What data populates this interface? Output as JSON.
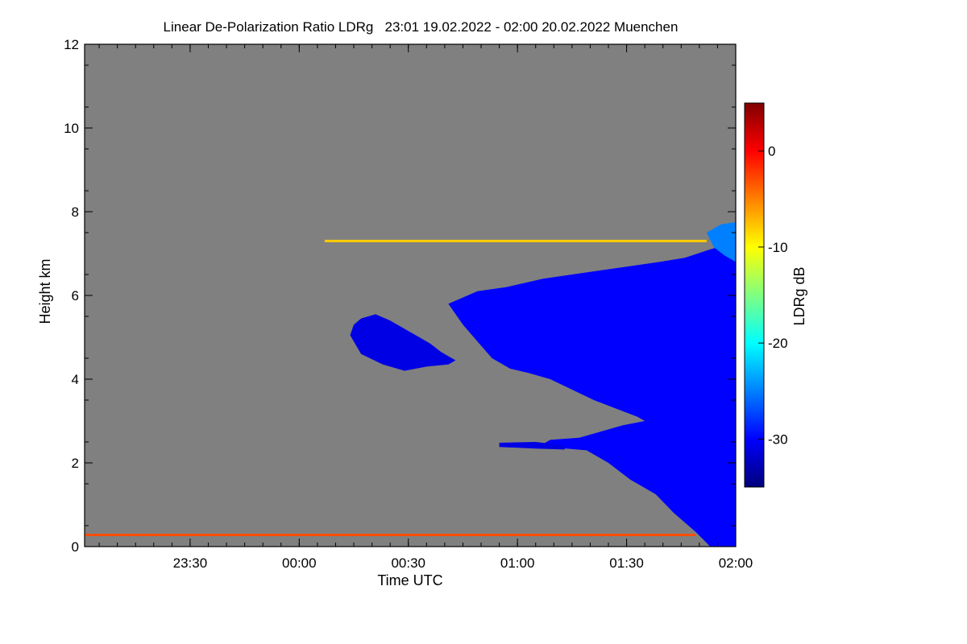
{
  "chart_data": {
    "type": "heatmap",
    "title": "Linear De-Polarization Ratio LDRg   23:01 19.02.2022 - 02:00 20.02.2022 Muenchen",
    "xlabel": "Time UTC",
    "ylabel": "Height km",
    "x_ticks": [
      {
        "value": 29,
        "label": "23:30"
      },
      {
        "value": 59,
        "label": "00:00"
      },
      {
        "value": 89,
        "label": "00:30"
      },
      {
        "value": 119,
        "label": "01:00"
      },
      {
        "value": 149,
        "label": "01:30"
      },
      {
        "value": 179,
        "label": "02:00"
      }
    ],
    "xlim": [
      0,
      179
    ],
    "ylim": [
      0,
      12
    ],
    "y_ticks": [
      {
        "value": 0,
        "label": "0"
      },
      {
        "value": 2,
        "label": "2"
      },
      {
        "value": 4,
        "label": "4"
      },
      {
        "value": 6,
        "label": "6"
      },
      {
        "value": 8,
        "label": "8"
      },
      {
        "value": 10,
        "label": "10"
      },
      {
        "value": 12,
        "label": "12"
      }
    ],
    "colorbar": {
      "label": "LDRg dB",
      "range": [
        -35,
        5
      ],
      "ticks": [
        {
          "value": 0,
          "label": "0"
        },
        {
          "value": -10,
          "label": "-10"
        },
        {
          "value": -20,
          "label": "-20"
        },
        {
          "value": -30,
          "label": "-30"
        }
      ],
      "colors": [
        "#00007a",
        "#0000ff",
        "#0080ff",
        "#00ffff",
        "#80ff80",
        "#ffff00",
        "#ff8000",
        "#ff0000",
        "#800000"
      ]
    },
    "background_color": "#808080",
    "features": [
      {
        "name": "mid-level cloud",
        "value_db": -31,
        "outline": [
          [
            74,
            5.3
          ],
          [
            76,
            5.45
          ],
          [
            80,
            5.55
          ],
          [
            84,
            5.4
          ],
          [
            90,
            5.1
          ],
          [
            95,
            4.85
          ],
          [
            98,
            4.65
          ],
          [
            102,
            4.45
          ],
          [
            100,
            4.35
          ],
          [
            94,
            4.3
          ],
          [
            88,
            4.2
          ],
          [
            82,
            4.35
          ],
          [
            76,
            4.6
          ],
          [
            73,
            5.05
          ]
        ]
      },
      {
        "name": "main cloud system",
        "value_db": -30,
        "outline": [
          [
            100,
            5.8
          ],
          [
            108,
            6.1
          ],
          [
            116,
            6.2
          ],
          [
            126,
            6.4
          ],
          [
            134,
            6.5
          ],
          [
            142,
            6.6
          ],
          [
            150,
            6.7
          ],
          [
            158,
            6.8
          ],
          [
            165,
            6.9
          ],
          [
            172,
            7.1
          ],
          [
            176,
            7.2
          ],
          [
            179,
            7.2
          ],
          [
            179,
            0.0
          ],
          [
            172,
            0.0
          ],
          [
            168,
            0.35
          ],
          [
            162,
            0.8
          ],
          [
            157,
            1.25
          ],
          [
            150,
            1.6
          ],
          [
            144,
            2.0
          ],
          [
            138,
            2.3
          ],
          [
            131,
            2.35
          ],
          [
            126,
            2.45
          ],
          [
            128,
            2.55
          ],
          [
            136,
            2.6
          ],
          [
            142,
            2.75
          ],
          [
            148,
            2.9
          ],
          [
            154,
            3.0
          ],
          [
            152,
            3.1
          ],
          [
            146,
            3.3
          ],
          [
            140,
            3.5
          ],
          [
            134,
            3.75
          ],
          [
            128,
            4.0
          ],
          [
            122,
            4.15
          ],
          [
            117,
            4.25
          ],
          [
            112,
            4.5
          ],
          [
            108,
            4.9
          ],
          [
            104,
            5.3
          ]
        ]
      },
      {
        "name": "upper cloud top",
        "value_db": -25,
        "outline": [
          [
            171,
            7.5
          ],
          [
            175,
            7.7
          ],
          [
            179,
            7.75
          ],
          [
            179,
            6.8
          ],
          [
            176,
            6.95
          ],
          [
            173,
            7.15
          ]
        ]
      },
      {
        "name": "thin layer ~2.3 km",
        "value_db": -31,
        "outline": [
          [
            114,
            2.48
          ],
          [
            124,
            2.5
          ],
          [
            132,
            2.42
          ],
          [
            132,
            2.32
          ],
          [
            124,
            2.34
          ],
          [
            114,
            2.38
          ]
        ]
      }
    ],
    "lines": [
      {
        "name": "near-surface layer",
        "value_db": -3,
        "y": 0.28,
        "x": [
          0,
          168
        ]
      },
      {
        "name": "layer ~7.3 km",
        "value_db": -8,
        "y": 7.3,
        "x": [
          66,
          171
        ]
      }
    ]
  }
}
